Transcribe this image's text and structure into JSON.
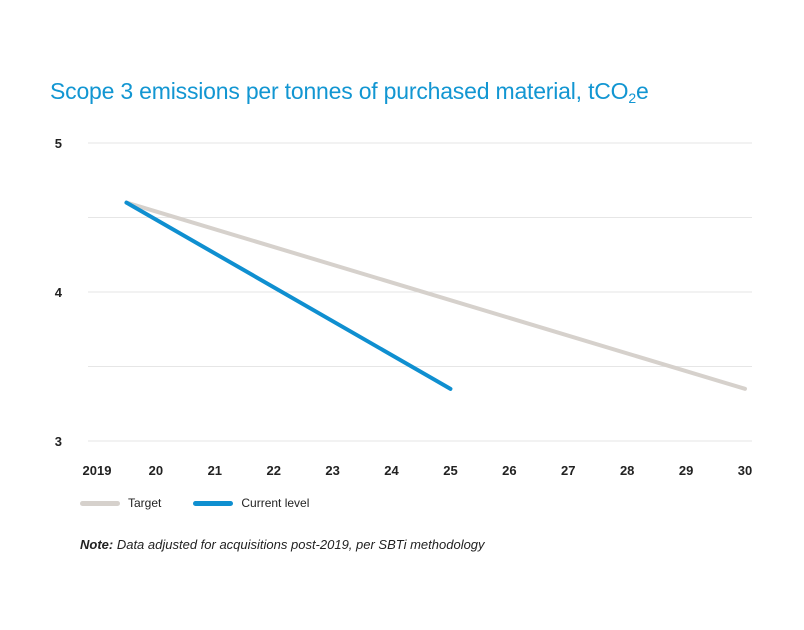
{
  "chart_data": {
    "type": "line",
    "title": "Scope 3 emissions per tonnes of purchased material, tCO",
    "title_subscript": "2",
    "title_suffix": "e",
    "x_tick_labels": [
      "2019",
      "20",
      "21",
      "22",
      "23",
      "24",
      "25",
      "26",
      "27",
      "28",
      "29",
      "30"
    ],
    "y_tick_labels": [
      "5",
      "4",
      "3"
    ],
    "ylim": [
      3,
      5
    ],
    "xlim": [
      2019,
      2030
    ],
    "grid": true,
    "legend_position": "bottom-left",
    "series": [
      {
        "name": "Target",
        "color": "#d6d1cc",
        "points": [
          [
            2019.5,
            4.6
          ],
          [
            2030,
            3.35
          ]
        ]
      },
      {
        "name": "Current level",
        "color": "#0f8fd0",
        "points": [
          [
            2019.5,
            4.6
          ],
          [
            2025,
            3.35
          ]
        ]
      }
    ],
    "note_label": "Note:",
    "note_text": " Data adjusted for acquisitions post-2019, per SBTi methodology"
  }
}
